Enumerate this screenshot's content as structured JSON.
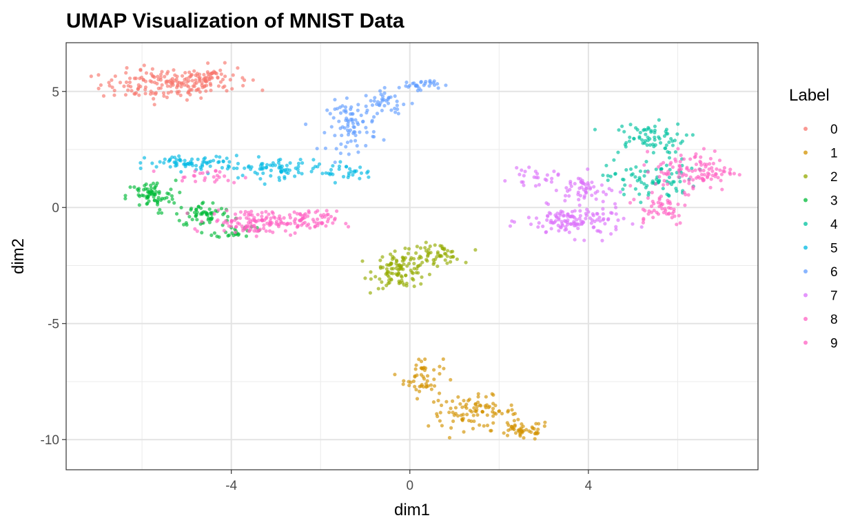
{
  "chart_data": {
    "type": "scatter",
    "title": "UMAP Visualization of MNIST Data",
    "xlabel": "dim1",
    "ylabel": "dim2",
    "xlim": [
      -7.7,
      7.8
    ],
    "ylim": [
      -11.3,
      7.1
    ],
    "x_ticks": [
      -4,
      0,
      4
    ],
    "x_tick_labels": [
      "-4",
      "0",
      "4"
    ],
    "y_ticks": [
      5,
      0,
      -5,
      -10
    ],
    "y_tick_labels": [
      "5",
      "0",
      "-5",
      "-10"
    ],
    "grid": true,
    "legend": {
      "title": "Label",
      "placement": "right"
    },
    "series": [
      {
        "name": "0",
        "color": "#F8766D",
        "clusters": [
          {
            "cx": -5.5,
            "cy": 5.3,
            "rx": 1.3,
            "ry": 0.6,
            "n": 150
          },
          {
            "cx": -4.5,
            "cy": 5.6,
            "rx": 0.8,
            "ry": 0.5,
            "n": 60
          }
        ]
      },
      {
        "name": "1",
        "color": "#D39200",
        "clusters": [
          {
            "cx": 0.3,
            "cy": -7.3,
            "rx": 0.4,
            "ry": 0.8,
            "n": 50
          },
          {
            "cx": 1.4,
            "cy": -8.8,
            "rx": 0.9,
            "ry": 0.6,
            "n": 90
          },
          {
            "cx": 2.5,
            "cy": -9.6,
            "rx": 0.6,
            "ry": 0.4,
            "n": 50
          }
        ]
      },
      {
        "name": "2",
        "color": "#93AA00",
        "clusters": [
          {
            "cx": -0.2,
            "cy": -2.7,
            "rx": 0.55,
            "ry": 0.7,
            "n": 110
          },
          {
            "cx": 0.6,
            "cy": -2.0,
            "rx": 0.5,
            "ry": 0.4,
            "n": 50
          }
        ]
      },
      {
        "name": "3",
        "color": "#00BA38",
        "clusters": [
          {
            "cx": -5.8,
            "cy": 0.5,
            "rx": 0.5,
            "ry": 0.6,
            "n": 70
          },
          {
            "cx": -4.6,
            "cy": -0.3,
            "rx": 0.6,
            "ry": 0.5,
            "n": 60
          },
          {
            "cx": -3.9,
            "cy": -1.0,
            "rx": 0.4,
            "ry": 0.3,
            "n": 25
          }
        ]
      },
      {
        "name": "4",
        "color": "#00C19F",
        "clusters": [
          {
            "cx": 5.3,
            "cy": 3.0,
            "rx": 0.8,
            "ry": 0.6,
            "n": 70
          },
          {
            "cx": 5.4,
            "cy": 1.2,
            "rx": 0.9,
            "ry": 0.8,
            "n": 80
          }
        ]
      },
      {
        "name": "5",
        "color": "#00B9E3",
        "clusters": [
          {
            "cx": -4.8,
            "cy": 1.9,
            "rx": 1.0,
            "ry": 0.3,
            "n": 70
          },
          {
            "cx": -3.0,
            "cy": 1.7,
            "rx": 1.0,
            "ry": 0.4,
            "n": 70
          },
          {
            "cx": -1.5,
            "cy": 1.5,
            "rx": 0.6,
            "ry": 0.3,
            "n": 30
          }
        ]
      },
      {
        "name": "6",
        "color": "#619CFF",
        "clusters": [
          {
            "cx": -1.3,
            "cy": 3.5,
            "rx": 0.5,
            "ry": 1.0,
            "n": 80
          },
          {
            "cx": -0.5,
            "cy": 4.5,
            "rx": 0.5,
            "ry": 0.5,
            "n": 40
          },
          {
            "cx": 0.2,
            "cy": 5.3,
            "rx": 0.4,
            "ry": 0.2,
            "n": 30
          }
        ]
      },
      {
        "name": "7",
        "color": "#DB72FB",
        "clusters": [
          {
            "cx": 3.7,
            "cy": -0.6,
            "rx": 1.0,
            "ry": 0.6,
            "n": 130
          },
          {
            "cx": 3.9,
            "cy": 0.8,
            "rx": 0.5,
            "ry": 0.6,
            "n": 50
          },
          {
            "cx": 2.8,
            "cy": 1.3,
            "rx": 0.5,
            "ry": 0.3,
            "n": 25
          }
        ]
      },
      {
        "name": "8",
        "color": "#FF61C3",
        "clusters": [
          {
            "cx": -3.5,
            "cy": -0.6,
            "rx": 0.9,
            "ry": 0.5,
            "n": 120
          },
          {
            "cx": -2.3,
            "cy": -0.6,
            "rx": 0.6,
            "ry": 0.4,
            "n": 60
          },
          {
            "cx": -4.6,
            "cy": 1.3,
            "rx": 0.8,
            "ry": 0.3,
            "n": 25
          }
        ]
      },
      {
        "name": "9",
        "color": "#FF61C3",
        "clusters": [
          {
            "cx": 6.4,
            "cy": 1.6,
            "rx": 0.8,
            "ry": 0.8,
            "n": 110
          },
          {
            "cx": 5.6,
            "cy": 0.0,
            "rx": 0.6,
            "ry": 0.7,
            "n": 50
          }
        ]
      }
    ]
  }
}
